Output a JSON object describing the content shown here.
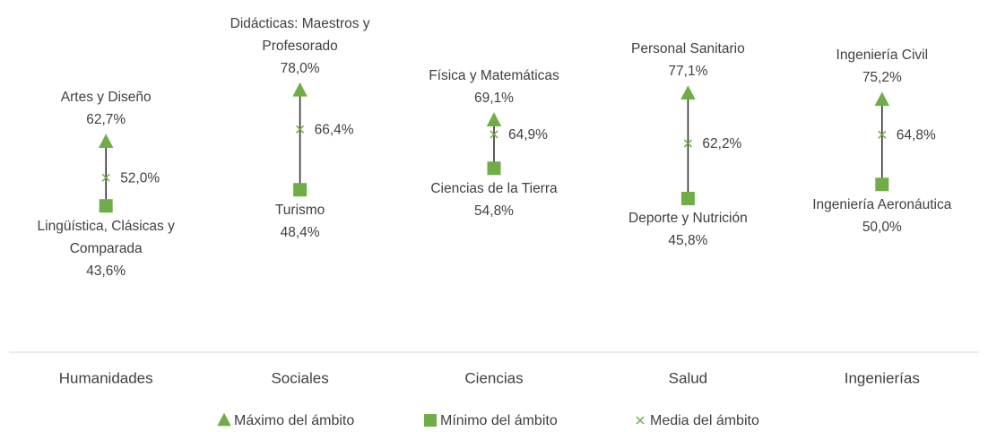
{
  "chart_data": {
    "type": "high-low-mean",
    "categories": [
      "Humanidades",
      "Sociales",
      "Ciencias",
      "Salud",
      "Ingenierías"
    ],
    "ylim": [
      0,
      100
    ],
    "series": [
      {
        "name": "Máximo del ámbito",
        "color": "#70ad47",
        "marker": "triangle",
        "values": [
          62.7,
          78.0,
          69.1,
          77.1,
          75.2
        ],
        "value_labels": [
          "62,7%",
          "78,0%",
          "69,1%",
          "77,1%",
          "75,2%"
        ],
        "point_labels": [
          "Artes y Diseño",
          "Didácticas: Maestros y Profesorado",
          "Física y Matemáticas",
          "Personal Sanitario",
          "Ingeniería Civil"
        ]
      },
      {
        "name": "Mínimo del ámbito",
        "color": "#70ad47",
        "marker": "square",
        "values": [
          43.6,
          48.4,
          54.8,
          45.8,
          50.0
        ],
        "value_labels": [
          "43,6%",
          "48,4%",
          "54,8%",
          "45,8%",
          "50,0%"
        ],
        "point_labels": [
          "Lingüística, Clásicas y Comparada",
          "Turismo",
          "Ciencias de la Tierra",
          "Deporte y Nutrición",
          "Ingeniería Aeronáutica"
        ]
      },
      {
        "name": "Media del ámbito",
        "color": "#70ad47",
        "marker": "x",
        "values": [
          52.0,
          66.4,
          64.9,
          62.2,
          64.8
        ],
        "value_labels": [
          "52,0%",
          "66,4%",
          "64,9%",
          "62,2%",
          "64,8%"
        ]
      }
    ]
  }
}
